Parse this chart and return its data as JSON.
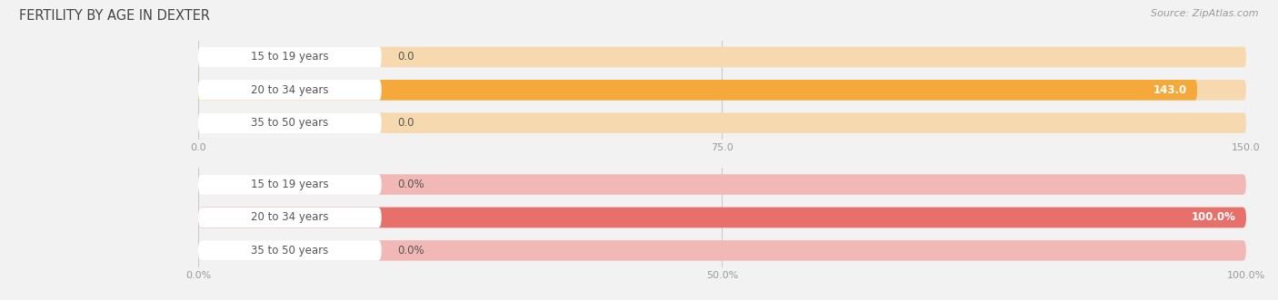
{
  "title": "FERTILITY BY AGE IN DEXTER",
  "source_text": "Source: ZipAtlas.com",
  "top_chart": {
    "categories": [
      "15 to 19 years",
      "20 to 34 years",
      "35 to 50 years"
    ],
    "values": [
      0.0,
      143.0,
      0.0
    ],
    "max_value": 150.0,
    "tick_values": [
      0.0,
      75.0,
      150.0
    ],
    "tick_labels": [
      "0.0",
      "75.0",
      "150.0"
    ],
    "bar_color_full": "#F5A93A",
    "bar_color_empty": "#F7D9B0",
    "value_labels": [
      "0.0",
      "143.0",
      "0.0"
    ]
  },
  "bottom_chart": {
    "categories": [
      "15 to 19 years",
      "20 to 34 years",
      "35 to 50 years"
    ],
    "values": [
      0.0,
      100.0,
      0.0
    ],
    "max_value": 100.0,
    "tick_values": [
      0.0,
      50.0,
      100.0
    ],
    "tick_labels": [
      "0.0%",
      "50.0%",
      "100.0%"
    ],
    "bar_color_full": "#E8706A",
    "bar_color_empty": "#F2B8B5",
    "value_labels": [
      "0.0%",
      "100.0%",
      "0.0%"
    ]
  },
  "bg_color": "#f2f2f2",
  "row_bg_color": "#e8e8e8",
  "label_bg_color": "#ffffff",
  "title_color": "#444444",
  "label_color": "#555555",
  "tick_color": "#999999",
  "source_color": "#999999",
  "bar_height": 0.62,
  "label_fontsize": 8.5,
  "title_fontsize": 10.5,
  "tick_fontsize": 8,
  "value_fontsize": 8.5
}
